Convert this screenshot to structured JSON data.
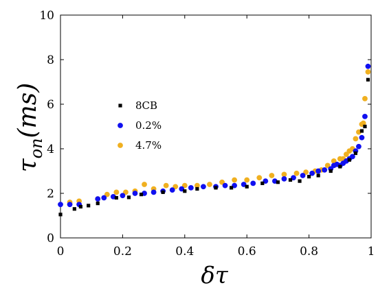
{
  "chart_data": {
    "type": "scatter",
    "xlabel": "δτ",
    "ylabel_main": "τ",
    "ylabel_sub": "on",
    "ylabel_unit": "(ms)",
    "xlim": [
      0,
      1
    ],
    "ylim": [
      0,
      10
    ],
    "xticks": [
      {
        "v": 0,
        "label": "0"
      },
      {
        "v": 0.2,
        "label": "0.2"
      },
      {
        "v": 0.4,
        "label": "0.4"
      },
      {
        "v": 0.6,
        "label": "0.6"
      },
      {
        "v": 0.8,
        "label": "0.8"
      },
      {
        "v": 1,
        "label": "1"
      }
    ],
    "yticks": [
      {
        "v": 0,
        "label": "0"
      },
      {
        "v": 2,
        "label": "2"
      },
      {
        "v": 4,
        "label": "4"
      },
      {
        "v": 6,
        "label": "6"
      },
      {
        "v": 8,
        "label": "8"
      },
      {
        "v": 10,
        "label": "10"
      }
    ],
    "grid": false,
    "legend_position": "center-left",
    "series": [
      {
        "name": "8CB",
        "marker": "square",
        "color": "#000000",
        "points": [
          [
            0.0,
            1.05
          ],
          [
            0.045,
            1.3
          ],
          [
            0.065,
            1.4
          ],
          [
            0.09,
            1.45
          ],
          [
            0.12,
            1.55
          ],
          [
            0.18,
            1.8
          ],
          [
            0.22,
            1.82
          ],
          [
            0.26,
            1.95
          ],
          [
            0.33,
            2.05
          ],
          [
            0.4,
            2.1
          ],
          [
            0.44,
            2.2
          ],
          [
            0.5,
            2.25
          ],
          [
            0.55,
            2.25
          ],
          [
            0.6,
            2.3
          ],
          [
            0.65,
            2.45
          ],
          [
            0.7,
            2.5
          ],
          [
            0.74,
            2.6
          ],
          [
            0.77,
            2.55
          ],
          [
            0.8,
            2.75
          ],
          [
            0.83,
            2.8
          ],
          [
            0.87,
            3.0
          ],
          [
            0.9,
            3.2
          ],
          [
            0.93,
            3.5
          ],
          [
            0.95,
            3.8
          ],
          [
            0.97,
            4.8
          ],
          [
            0.98,
            5.0
          ],
          [
            0.99,
            7.1
          ]
        ]
      },
      {
        "name": "0.2%",
        "marker": "circle",
        "color": "#1010f0",
        "points": [
          [
            0.0,
            1.5
          ],
          [
            0.03,
            1.5
          ],
          [
            0.06,
            1.5
          ],
          [
            0.12,
            1.75
          ],
          [
            0.14,
            1.8
          ],
          [
            0.17,
            1.85
          ],
          [
            0.2,
            1.9
          ],
          [
            0.24,
            2.0
          ],
          [
            0.27,
            2.0
          ],
          [
            0.3,
            2.05
          ],
          [
            0.33,
            2.1
          ],
          [
            0.36,
            2.15
          ],
          [
            0.39,
            2.2
          ],
          [
            0.42,
            2.25
          ],
          [
            0.46,
            2.3
          ],
          [
            0.5,
            2.3
          ],
          [
            0.53,
            2.35
          ],
          [
            0.56,
            2.35
          ],
          [
            0.59,
            2.4
          ],
          [
            0.62,
            2.45
          ],
          [
            0.66,
            2.55
          ],
          [
            0.69,
            2.55
          ],
          [
            0.72,
            2.65
          ],
          [
            0.75,
            2.7
          ],
          [
            0.78,
            2.8
          ],
          [
            0.81,
            2.9
          ],
          [
            0.83,
            3.0
          ],
          [
            0.85,
            3.05
          ],
          [
            0.87,
            3.1
          ],
          [
            0.88,
            3.25
          ],
          [
            0.89,
            3.3
          ],
          [
            0.9,
            3.25
          ],
          [
            0.91,
            3.35
          ],
          [
            0.92,
            3.45
          ],
          [
            0.93,
            3.55
          ],
          [
            0.94,
            3.65
          ],
          [
            0.95,
            3.9
          ],
          [
            0.96,
            4.1
          ],
          [
            0.97,
            4.5
          ],
          [
            0.98,
            5.45
          ],
          [
            0.99,
            7.7
          ]
        ]
      },
      {
        "name": "4.7%",
        "marker": "circle",
        "color": "#f0b020",
        "points": [
          [
            0.03,
            1.6
          ],
          [
            0.06,
            1.65
          ],
          [
            0.12,
            1.75
          ],
          [
            0.15,
            1.95
          ],
          [
            0.18,
            2.05
          ],
          [
            0.21,
            2.05
          ],
          [
            0.24,
            2.1
          ],
          [
            0.27,
            2.4
          ],
          [
            0.3,
            2.2
          ],
          [
            0.34,
            2.35
          ],
          [
            0.37,
            2.3
          ],
          [
            0.4,
            2.35
          ],
          [
            0.44,
            2.35
          ],
          [
            0.48,
            2.4
          ],
          [
            0.52,
            2.5
          ],
          [
            0.56,
            2.6
          ],
          [
            0.6,
            2.6
          ],
          [
            0.64,
            2.7
          ],
          [
            0.68,
            2.8
          ],
          [
            0.72,
            2.85
          ],
          [
            0.76,
            2.9
          ],
          [
            0.79,
            2.95
          ],
          [
            0.82,
            3.0
          ],
          [
            0.84,
            3.05
          ],
          [
            0.86,
            3.25
          ],
          [
            0.88,
            3.45
          ],
          [
            0.9,
            3.55
          ],
          [
            0.91,
            3.55
          ],
          [
            0.92,
            3.75
          ],
          [
            0.93,
            3.9
          ],
          [
            0.94,
            4.0
          ],
          [
            0.95,
            4.45
          ],
          [
            0.96,
            4.75
          ],
          [
            0.97,
            5.1
          ],
          [
            0.975,
            5.15
          ],
          [
            0.98,
            6.25
          ],
          [
            0.99,
            7.45
          ]
        ]
      }
    ]
  }
}
